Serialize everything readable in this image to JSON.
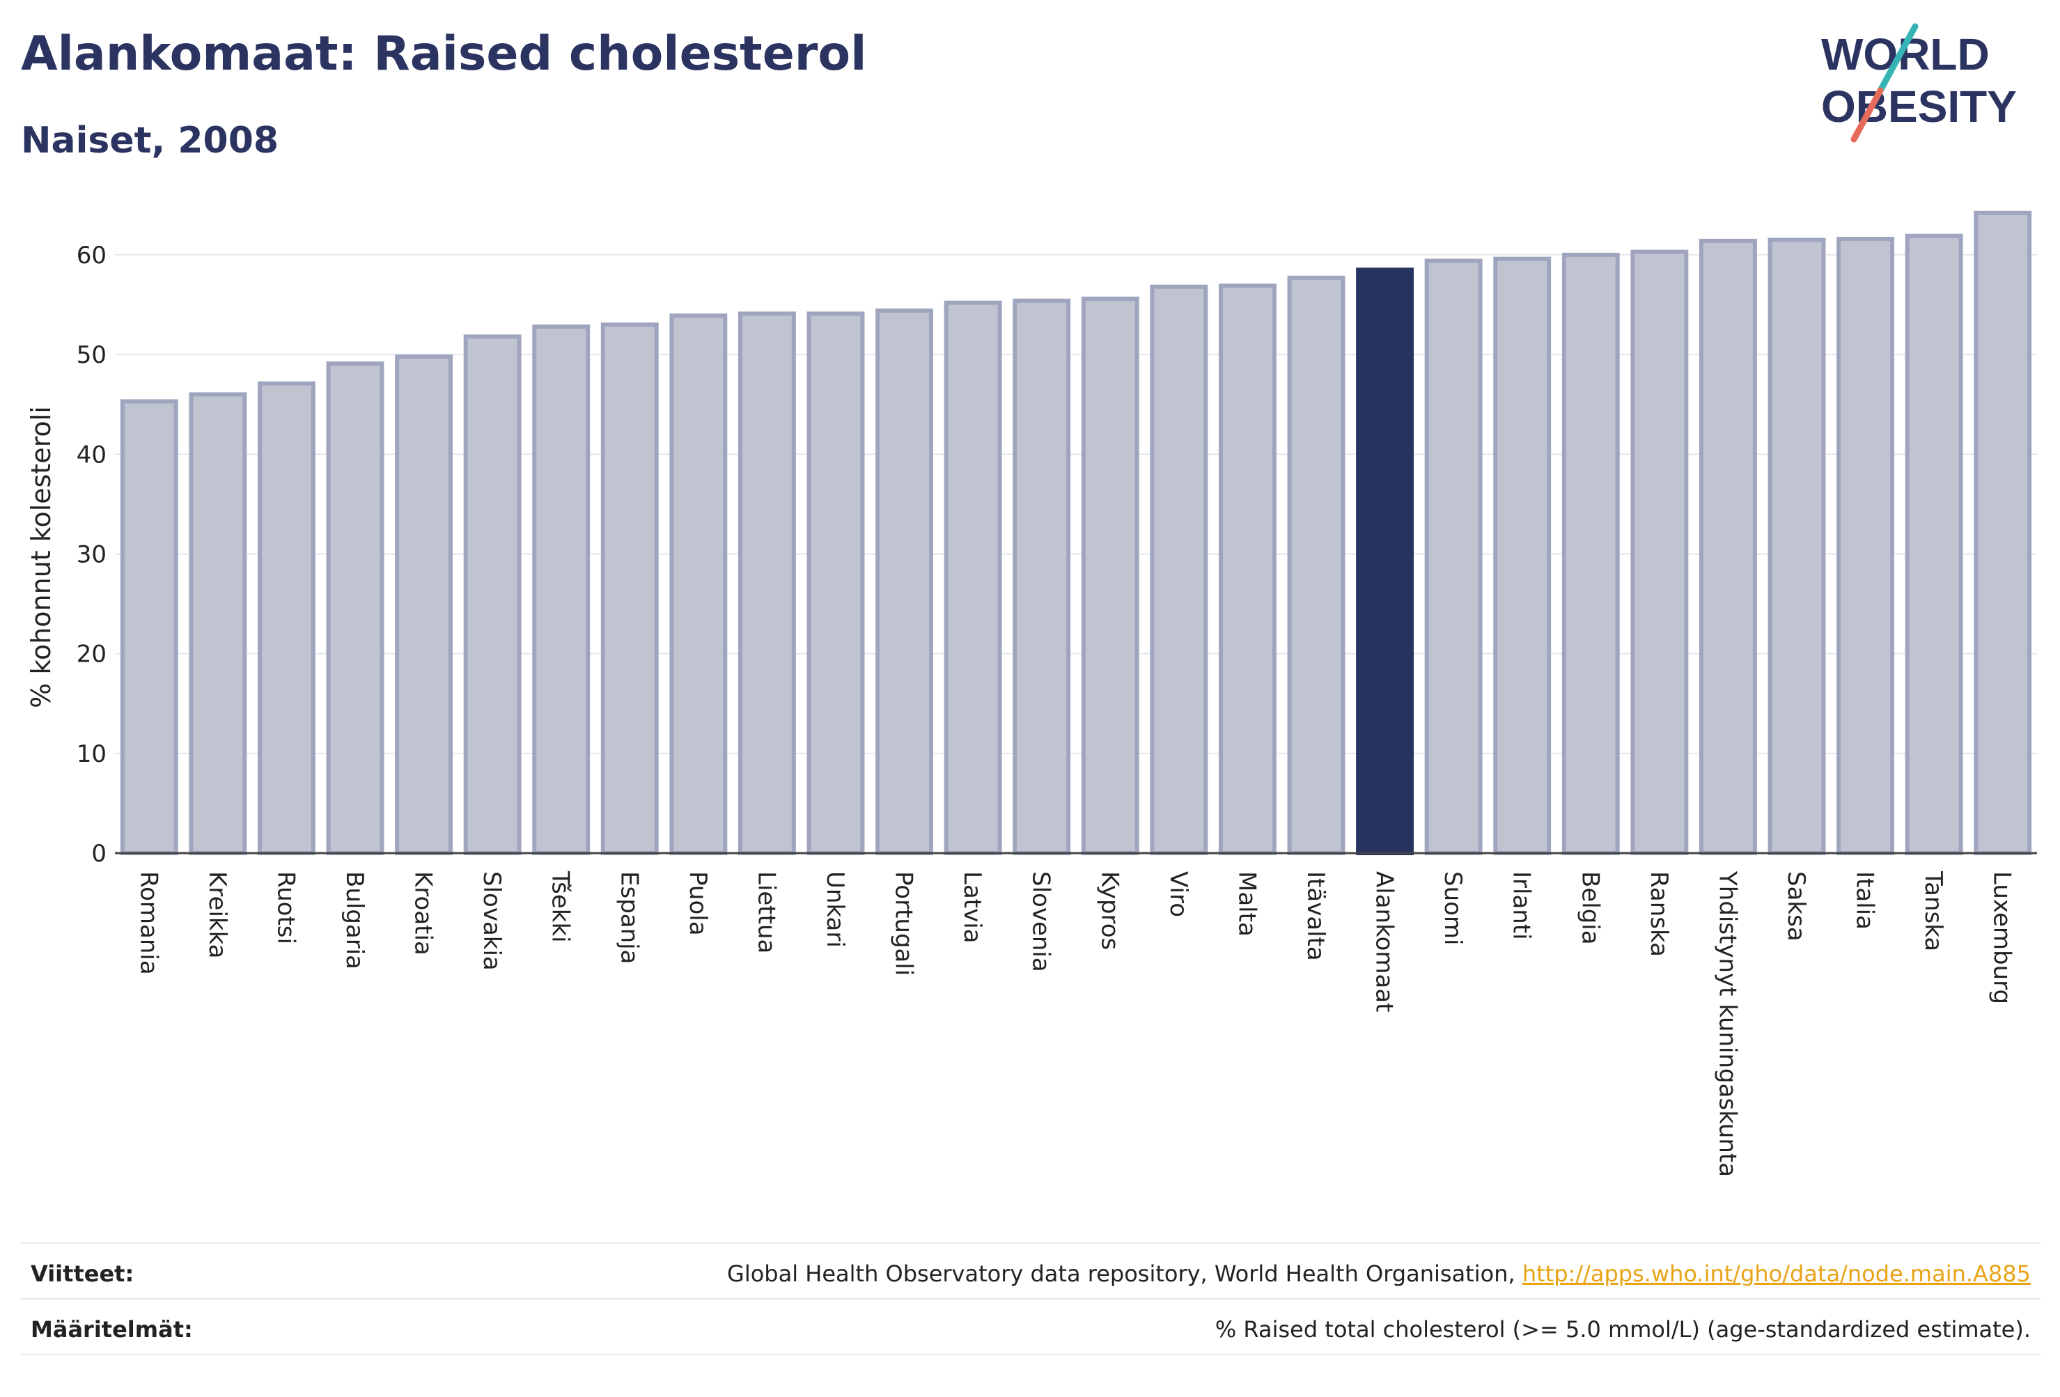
{
  "header": {
    "title": "Alankomaat: Raised cholesterol",
    "subtitle": "Naiset, 2008"
  },
  "logo": {
    "line1": "WORLD",
    "line2": "OBESITY"
  },
  "colors": {
    "bar": "#c0c3d0",
    "bar_edge": "#9fa5bf",
    "highlight": "#283460",
    "accent_teal": "#35b3b5",
    "accent_red": "#e56a5a"
  },
  "chart_data": {
    "type": "bar",
    "ylabel": "% kohonnut kolesteroli",
    "ylim": [
      0,
      66
    ],
    "yticks": [
      0,
      10,
      20,
      30,
      40,
      50,
      60
    ],
    "grid": true,
    "highlight": "Alankomaat",
    "categories": [
      "Romania",
      "Kreikka",
      "Ruotsi",
      "Bulgaria",
      "Kroatia",
      "Slovakia",
      "Tšekki",
      "Espanja",
      "Puola",
      "Liettua",
      "Unkari",
      "Portugali",
      "Latvia",
      "Slovenia",
      "Kypros",
      "Viro",
      "Malta",
      "Itävalta",
      "Alankomaat",
      "Suomi",
      "Irlanti",
      "Belgia",
      "Ranska",
      "Yhdistynyt kuningaskunta",
      "Saksa",
      "Italia",
      "Tanska",
      "Luxemburg"
    ],
    "values": [
      45.3,
      46.0,
      47.1,
      49.1,
      49.8,
      51.8,
      52.8,
      53.0,
      53.9,
      54.1,
      54.1,
      54.4,
      55.2,
      55.4,
      55.6,
      56.8,
      56.9,
      57.7,
      58.5,
      59.4,
      59.6,
      60.0,
      60.3,
      61.4,
      61.5,
      61.6,
      61.9,
      64.2
    ]
  },
  "footer": {
    "references_label": "Viitteet:",
    "references_text": "Global Health Observatory data repository, World Health Organisation, ",
    "references_link": "http://apps.who.int/gho/data/node.main.A885",
    "definitions_label": "Määritelmät:",
    "definitions_text": "% Raised total cholesterol (>= 5.0 mmol/L) (age-standardized estimate)."
  }
}
